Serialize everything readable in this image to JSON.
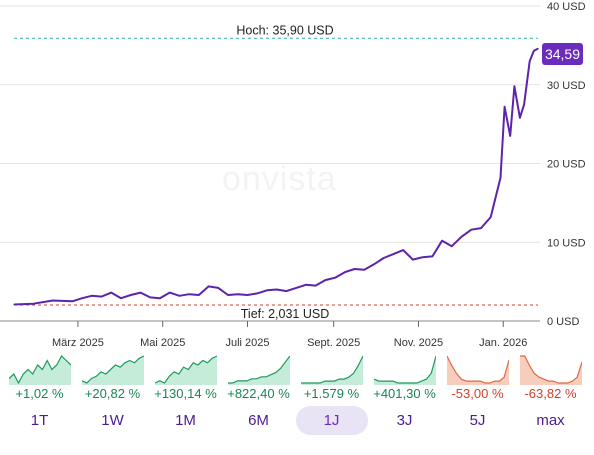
{
  "chart_data": {
    "type": "line",
    "y_unit": "USD",
    "ylim": [
      0,
      40
    ],
    "y_ticks": [
      {
        "value": 40,
        "label": "40 USD"
      },
      {
        "value": 30,
        "label": "30 USD"
      },
      {
        "value": 20,
        "label": "20 USD"
      },
      {
        "value": 10,
        "label": "10 USD"
      },
      {
        "value": 0,
        "label": "0 USD"
      }
    ],
    "x_ticks": [
      "März 2025",
      "Mai 2025",
      "Juli 2025",
      "Sept. 2025",
      "Nov. 2025",
      "Jan. 2026"
    ],
    "grid": "horizontal",
    "series_color": "#5c23ad",
    "x": [
      "2025-01-14",
      "2025-01-28",
      "2025-02-11",
      "2025-02-25",
      "2025-03-04",
      "2025-03-11",
      "2025-03-18",
      "2025-03-25",
      "2025-04-01",
      "2025-04-08",
      "2025-04-15",
      "2025-04-22",
      "2025-04-29",
      "2025-05-06",
      "2025-05-13",
      "2025-05-20",
      "2025-05-27",
      "2025-06-03",
      "2025-06-10",
      "2025-06-17",
      "2025-06-24",
      "2025-07-01",
      "2025-07-08",
      "2025-07-15",
      "2025-07-22",
      "2025-07-29",
      "2025-08-05",
      "2025-08-12",
      "2025-08-19",
      "2025-08-26",
      "2025-09-02",
      "2025-09-09",
      "2025-09-16",
      "2025-09-23",
      "2025-09-30",
      "2025-10-07",
      "2025-10-14",
      "2025-10-21",
      "2025-10-28",
      "2025-11-04",
      "2025-11-11",
      "2025-11-18",
      "2025-11-25",
      "2025-12-02",
      "2025-12-09",
      "2025-12-16",
      "2025-12-23",
      "2025-12-30",
      "2026-01-02",
      "2026-01-06",
      "2026-01-09",
      "2026-01-13",
      "2026-01-16",
      "2026-01-20",
      "2026-01-23",
      "2026-01-26"
    ],
    "values": [
      2.1,
      2.2,
      2.6,
      2.5,
      2.9,
      3.2,
      3.1,
      3.6,
      2.9,
      3.3,
      3.6,
      3.0,
      2.9,
      3.6,
      3.2,
      3.4,
      3.3,
      4.4,
      4.2,
      3.3,
      3.4,
      3.3,
      3.5,
      3.9,
      4.0,
      3.8,
      4.2,
      4.6,
      4.5,
      5.2,
      5.5,
      6.2,
      6.6,
      6.5,
      7.2,
      8.0,
      8.5,
      9.0,
      7.8,
      8.1,
      8.2,
      10.2,
      9.5,
      10.7,
      11.6,
      11.8,
      13.2,
      18.2,
      27.2,
      23.5,
      29.8,
      25.8,
      27.5,
      33.0,
      34.3,
      34.59
    ],
    "current": {
      "value": 34.59,
      "label": "34,59"
    },
    "high": {
      "value": 35.9,
      "label": "Hoch: 35,90 USD",
      "color": "#2bb3a5"
    },
    "low": {
      "value": 2.031,
      "label": "Tief: 2,031 USD",
      "color": "#d0402a"
    }
  },
  "watermark": "onvista",
  "periods": [
    {
      "label": "1T",
      "change": "+1,02 %",
      "trend": "positive",
      "spark": [
        4,
        5,
        3,
        5,
        6,
        5,
        7,
        6,
        8,
        6,
        7,
        9,
        8,
        7
      ]
    },
    {
      "label": "1W",
      "change": "+20,82 %",
      "trend": "positive",
      "spark": [
        4,
        3,
        5,
        6,
        8,
        7,
        9,
        11,
        10,
        12,
        13,
        12,
        14,
        15
      ]
    },
    {
      "label": "1M",
      "change": "+130,14 %",
      "trend": "positive",
      "spark": [
        3,
        4,
        3,
        6,
        8,
        7,
        10,
        9,
        12,
        11,
        13,
        12,
        14,
        15
      ]
    },
    {
      "label": "6M",
      "change": "+822,40 %",
      "trend": "positive",
      "spark": [
        2,
        2,
        3,
        3,
        3,
        4,
        4,
        5,
        5,
        6,
        7,
        9,
        12,
        15
      ]
    },
    {
      "label": "1J",
      "change": "+1.579 %",
      "trend": "positive",
      "spark": [
        1,
        1,
        1,
        1,
        1,
        2,
        2,
        2,
        3,
        3,
        4,
        6,
        10,
        15
      ],
      "active": true
    },
    {
      "label": "3J",
      "change": "+401,30 %",
      "trend": "positive",
      "spark": [
        3,
        2,
        2,
        2,
        2,
        1,
        1,
        1,
        1,
        1,
        2,
        3,
        6,
        15
      ]
    },
    {
      "label": "5J",
      "change": "-53,00 %",
      "trend": "negative",
      "spark": [
        15,
        10,
        6,
        3,
        2,
        2,
        2,
        2,
        1,
        1,
        2,
        2,
        4,
        13
      ]
    },
    {
      "label": "max",
      "change": "-63,82 %",
      "trend": "negative",
      "spark": [
        15,
        15,
        10,
        6,
        4,
        3,
        2,
        2,
        1,
        1,
        1,
        2,
        4,
        12
      ]
    }
  ]
}
